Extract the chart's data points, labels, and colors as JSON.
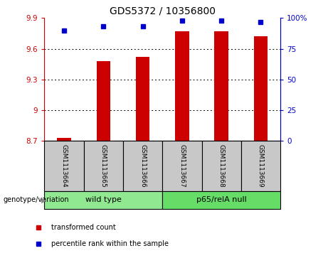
{
  "title": "GDS5372 / 10356800",
  "samples": [
    "GSM1113664",
    "GSM1113665",
    "GSM1113666",
    "GSM1113667",
    "GSM1113668",
    "GSM1113669"
  ],
  "bar_values": [
    8.73,
    9.48,
    9.52,
    9.77,
    9.77,
    9.72
  ],
  "percentile_values": [
    90,
    93,
    93,
    98,
    98,
    97
  ],
  "ylim_left": [
    8.7,
    9.9
  ],
  "ylim_right": [
    0,
    100
  ],
  "yticks_left": [
    8.7,
    9.0,
    9.3,
    9.6,
    9.9
  ],
  "ytick_labels_left": [
    "8.7",
    "9",
    "9.3",
    "9.6",
    "9.9"
  ],
  "yticks_right": [
    0,
    25,
    50,
    75,
    100
  ],
  "ytick_labels_right": [
    "0",
    "25",
    "50",
    "75",
    "100%"
  ],
  "bar_color": "#cc0000",
  "percentile_color": "#0000cc",
  "bar_bg_color": "#c8c8c8",
  "group1_label": "wild type",
  "group2_label": "p65/relA null",
  "group1_color": "#90e890",
  "group2_color": "#66dd66",
  "group1_indices": [
    0,
    1,
    2
  ],
  "group2_indices": [
    3,
    4,
    5
  ],
  "legend_bar_label": "transformed count",
  "legend_pct_label": "percentile rank within the sample",
  "genotype_label": "genotype/variation",
  "title_fontsize": 10,
  "tick_fontsize": 7.5,
  "label_fontsize": 7.5,
  "bar_width": 0.35
}
